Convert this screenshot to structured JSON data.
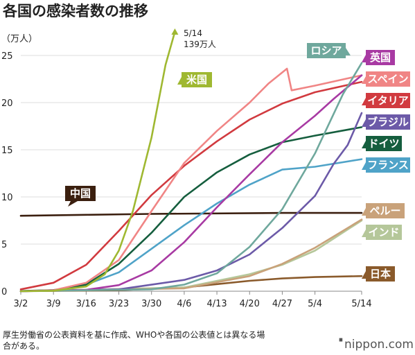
{
  "chart_data": {
    "type": "line",
    "title": "各国の感染者数の推移",
    "ylabel": "（万人）",
    "ylim": [
      0,
      25
    ],
    "yticks": [
      0,
      5,
      10,
      15,
      20,
      25
    ],
    "xlabels": [
      "3/2",
      "3/9",
      "3/16",
      "3/23",
      "3/30",
      "4/6",
      "4/13",
      "4/20",
      "4/27",
      "5/4",
      "5/14"
    ],
    "x_range": [
      "3/2",
      "5/14"
    ],
    "grid": true,
    "annotation": {
      "date": "5/14",
      "line1": "5/14",
      "line2": "139万人"
    },
    "series": [
      {
        "name": "米国",
        "color": "#9fb831",
        "points": [
          [
            "3/2",
            0
          ],
          [
            "3/9",
            0.05
          ],
          [
            "3/16",
            0.5
          ],
          [
            "3/20",
            1.8
          ],
          [
            "3/23",
            4.3
          ],
          [
            "3/26",
            8.5
          ],
          [
            "3/30",
            16.3
          ],
          [
            "4/2",
            24
          ],
          [
            "4/4",
            27.5
          ]
        ],
        "dotted_to": [
          "4/4",
          29
        ]
      },
      {
        "name": "ロシア",
        "color": "#6fa89d",
        "points": [
          [
            "3/2",
            0
          ],
          [
            "3/30",
            0.2
          ],
          [
            "4/6",
            0.7
          ],
          [
            "4/13",
            1.9
          ],
          [
            "4/20",
            4.7
          ],
          [
            "4/27",
            8.7
          ],
          [
            "5/4",
            14.6
          ],
          [
            "5/10",
            20.9
          ],
          [
            "5/14",
            24.2
          ]
        ]
      },
      {
        "name": "英国",
        "color": "#a83aa3",
        "points": [
          [
            "3/2",
            0
          ],
          [
            "3/16",
            0.15
          ],
          [
            "3/23",
            0.65
          ],
          [
            "3/30",
            2.2
          ],
          [
            "4/6",
            5.2
          ],
          [
            "4/13",
            8.9
          ],
          [
            "4/20",
            12.4
          ],
          [
            "4/27",
            15.8
          ],
          [
            "5/4",
            18.6
          ],
          [
            "5/8",
            20.4
          ],
          [
            "5/14",
            22.9
          ]
        ]
      },
      {
        "name": "スペイン",
        "color": "#f08585",
        "points": [
          [
            "3/2",
            0
          ],
          [
            "3/9",
            0.1
          ],
          [
            "3/16",
            0.9
          ],
          [
            "3/23",
            3.3
          ],
          [
            "3/30",
            8.5
          ],
          [
            "4/6",
            13.6
          ],
          [
            "4/13",
            17.0
          ],
          [
            "4/20",
            20.0
          ],
          [
            "4/24",
            22.0
          ],
          [
            "4/28",
            23.6
          ],
          [
            "4/29",
            21.3
          ],
          [
            "5/4",
            21.8
          ],
          [
            "5/14",
            22.9
          ]
        ]
      },
      {
        "name": "イタリア",
        "color": "#d13a3f",
        "points": [
          [
            "3/2",
            0.2
          ],
          [
            "3/9",
            0.9
          ],
          [
            "3/16",
            2.8
          ],
          [
            "3/23",
            6.4
          ],
          [
            "3/30",
            10.2
          ],
          [
            "4/6",
            13.3
          ],
          [
            "4/13",
            15.9
          ],
          [
            "4/20",
            18.2
          ],
          [
            "4/27",
            19.9
          ],
          [
            "5/4",
            21.1
          ],
          [
            "5/14",
            22.2
          ]
        ]
      },
      {
        "name": "ブラジル",
        "color": "#6c5aa8",
        "points": [
          [
            "3/2",
            0
          ],
          [
            "3/23",
            0.2
          ],
          [
            "4/6",
            1.2
          ],
          [
            "4/13",
            2.2
          ],
          [
            "4/20",
            3.9
          ],
          [
            "4/27",
            6.7
          ],
          [
            "5/4",
            10.1
          ],
          [
            "5/8",
            13.5
          ],
          [
            "5/11",
            15.5
          ],
          [
            "5/14",
            18.9
          ]
        ]
      },
      {
        "name": "ドイツ",
        "color": "#155e3e",
        "points": [
          [
            "3/2",
            0.02
          ],
          [
            "3/9",
            0.12
          ],
          [
            "3/16",
            0.7
          ],
          [
            "3/23",
            2.9
          ],
          [
            "3/30",
            6.2
          ],
          [
            "4/6",
            10.0
          ],
          [
            "4/13",
            12.6
          ],
          [
            "4/20",
            14.5
          ],
          [
            "4/27",
            15.8
          ],
          [
            "5/4",
            16.5
          ],
          [
            "5/14",
            17.4
          ]
        ]
      },
      {
        "name": "フランス",
        "color": "#4fa3c8",
        "points": [
          [
            "3/2",
            0
          ],
          [
            "3/9",
            0.1
          ],
          [
            "3/16",
            0.7
          ],
          [
            "3/23",
            2.0
          ],
          [
            "3/30",
            4.5
          ],
          [
            "4/6",
            7.0
          ],
          [
            "4/13",
            9.3
          ],
          [
            "4/20",
            11.3
          ],
          [
            "4/27",
            12.9
          ],
          [
            "5/4",
            13.2
          ],
          [
            "5/14",
            14.0
          ]
        ]
      },
      {
        "name": "中国",
        "color": "#3b1f0f",
        "points": [
          [
            "3/2",
            8.0
          ],
          [
            "3/16",
            8.1
          ],
          [
            "3/30",
            8.2
          ],
          [
            "4/27",
            8.3
          ],
          [
            "5/14",
            8.3
          ]
        ]
      },
      {
        "name": "ペルー",
        "color": "#c9a27a",
        "points": [
          [
            "3/2",
            0
          ],
          [
            "4/6",
            0.3
          ],
          [
            "4/20",
            1.6
          ],
          [
            "4/27",
            2.9
          ],
          [
            "5/4",
            4.6
          ],
          [
            "5/14",
            7.6
          ]
        ]
      },
      {
        "name": "インド",
        "color": "#b5c79a",
        "points": [
          [
            "3/2",
            0
          ],
          [
            "4/6",
            0.4
          ],
          [
            "4/20",
            1.8
          ],
          [
            "4/27",
            2.8
          ],
          [
            "5/4",
            4.3
          ],
          [
            "5/14",
            7.5
          ]
        ]
      },
      {
        "name": "日本",
        "color": "#8a5a2b",
        "points": [
          [
            "3/2",
            0
          ],
          [
            "3/23",
            0.1
          ],
          [
            "4/6",
            0.4
          ],
          [
            "4/13",
            0.75
          ],
          [
            "4/20",
            1.1
          ],
          [
            "4/27",
            1.35
          ],
          [
            "5/4",
            1.5
          ],
          [
            "5/14",
            1.6
          ]
        ]
      }
    ]
  },
  "footnote_line1": "厚生労働省の公表資料を基に作成、WHOや各国の公表値とは異なる場",
  "footnote_line2": "合がある。",
  "brand": "nippon.com"
}
